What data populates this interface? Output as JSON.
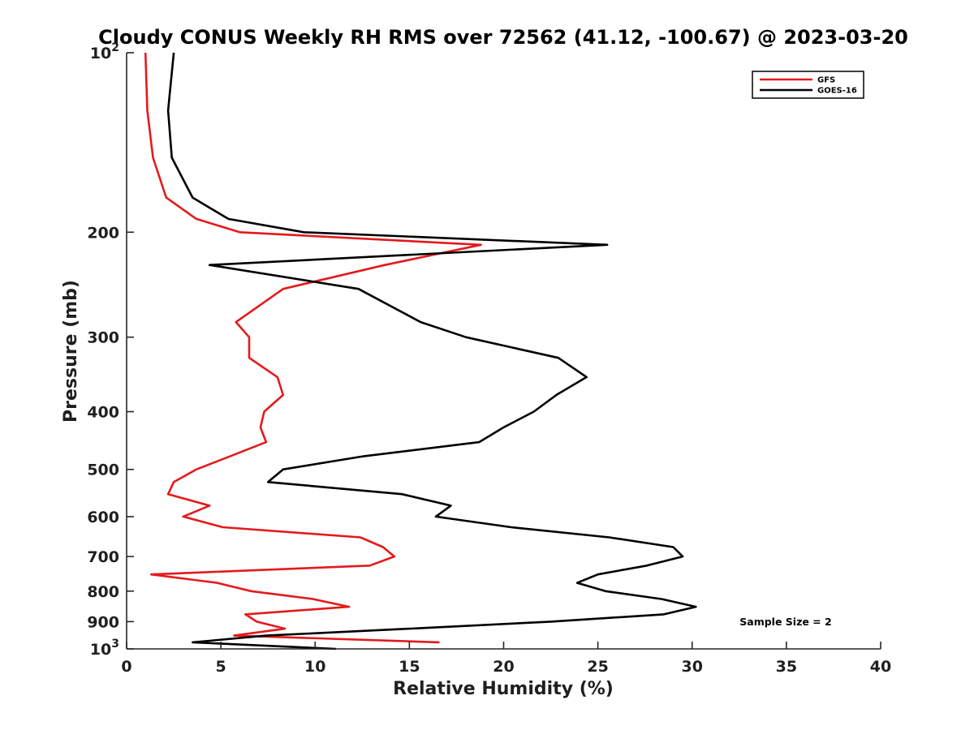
{
  "chart_data": {
    "type": "line",
    "title": "Cloudy CONUS Weekly RH RMS over 72562 (41.12, -100.67) @ 2023-03-20",
    "xlabel": "Relative Humidity (%)",
    "ylabel": "Pressure (mb)",
    "xlim": [
      0,
      40
    ],
    "ylim": [
      100,
      1000
    ],
    "y_scale": "log",
    "y_inverted": true,
    "x_ticks": [
      "0",
      "5",
      "10",
      "15",
      "20",
      "25",
      "30",
      "35",
      "40"
    ],
    "y_ticks": [
      {
        "value": 100,
        "base": "10",
        "exp": "2"
      },
      {
        "value": 200,
        "label": "200"
      },
      {
        "value": 300,
        "label": "300"
      },
      {
        "value": 400,
        "label": "400"
      },
      {
        "value": 500,
        "label": "500"
      },
      {
        "value": 600,
        "label": "600"
      },
      {
        "value": 700,
        "label": "700"
      },
      {
        "value": 800,
        "label": "800"
      },
      {
        "value": 900,
        "label": "900"
      },
      {
        "value": 1000,
        "base": "10",
        "exp": "3"
      }
    ],
    "grid": false,
    "legend_position": "top-right",
    "series": [
      {
        "name": "GFS",
        "color": "#e41a1c",
        "points": [
          {
            "x": 1.0,
            "y": 100
          },
          {
            "x": 1.1,
            "y": 125
          },
          {
            "x": 1.4,
            "y": 150
          },
          {
            "x": 2.1,
            "y": 175
          },
          {
            "x": 3.7,
            "y": 190
          },
          {
            "x": 6.0,
            "y": 200
          },
          {
            "x": 18.8,
            "y": 210
          },
          {
            "x": 13.7,
            "y": 227
          },
          {
            "x": 8.3,
            "y": 249
          },
          {
            "x": 5.8,
            "y": 283
          },
          {
            "x": 6.5,
            "y": 300
          },
          {
            "x": 6.5,
            "y": 325
          },
          {
            "x": 8.0,
            "y": 350
          },
          {
            "x": 8.3,
            "y": 375
          },
          {
            "x": 7.3,
            "y": 400
          },
          {
            "x": 7.1,
            "y": 425
          },
          {
            "x": 7.4,
            "y": 450
          },
          {
            "x": 5.5,
            "y": 475
          },
          {
            "x": 3.7,
            "y": 500
          },
          {
            "x": 2.5,
            "y": 525
          },
          {
            "x": 2.2,
            "y": 550
          },
          {
            "x": 4.4,
            "y": 575
          },
          {
            "x": 3.0,
            "y": 600
          },
          {
            "x": 5.1,
            "y": 625
          },
          {
            "x": 12.4,
            "y": 650
          },
          {
            "x": 13.6,
            "y": 675
          },
          {
            "x": 14.2,
            "y": 700
          },
          {
            "x": 12.9,
            "y": 725
          },
          {
            "x": 1.3,
            "y": 750
          },
          {
            "x": 4.8,
            "y": 775
          },
          {
            "x": 6.6,
            "y": 800
          },
          {
            "x": 9.9,
            "y": 825
          },
          {
            "x": 11.8,
            "y": 850
          },
          {
            "x": 6.3,
            "y": 875
          },
          {
            "x": 6.9,
            "y": 900
          },
          {
            "x": 8.4,
            "y": 925
          },
          {
            "x": 5.7,
            "y": 950
          },
          {
            "x": 16.6,
            "y": 975
          }
        ]
      },
      {
        "name": "GOES-16",
        "color": "#000000",
        "points": [
          {
            "x": 2.5,
            "y": 100
          },
          {
            "x": 2.2,
            "y": 125
          },
          {
            "x": 2.4,
            "y": 150
          },
          {
            "x": 3.5,
            "y": 175
          },
          {
            "x": 5.4,
            "y": 190
          },
          {
            "x": 9.4,
            "y": 200
          },
          {
            "x": 25.5,
            "y": 210
          },
          {
            "x": 4.4,
            "y": 227
          },
          {
            "x": 12.3,
            "y": 249
          },
          {
            "x": 15.6,
            "y": 283
          },
          {
            "x": 18.0,
            "y": 300
          },
          {
            "x": 22.9,
            "y": 325
          },
          {
            "x": 24.4,
            "y": 350
          },
          {
            "x": 22.8,
            "y": 375
          },
          {
            "x": 21.6,
            "y": 400
          },
          {
            "x": 20.0,
            "y": 425
          },
          {
            "x": 18.7,
            "y": 450
          },
          {
            "x": 12.6,
            "y": 475
          },
          {
            "x": 8.3,
            "y": 500
          },
          {
            "x": 7.5,
            "y": 525
          },
          {
            "x": 14.6,
            "y": 550
          },
          {
            "x": 17.2,
            "y": 575
          },
          {
            "x": 16.4,
            "y": 600
          },
          {
            "x": 20.4,
            "y": 625
          },
          {
            "x": 25.6,
            "y": 650
          },
          {
            "x": 29.0,
            "y": 675
          },
          {
            "x": 29.5,
            "y": 700
          },
          {
            "x": 27.6,
            "y": 725
          },
          {
            "x": 25.0,
            "y": 750
          },
          {
            "x": 23.9,
            "y": 775
          },
          {
            "x": 25.4,
            "y": 800
          },
          {
            "x": 28.4,
            "y": 825
          },
          {
            "x": 30.2,
            "y": 850
          },
          {
            "x": 28.5,
            "y": 875
          },
          {
            "x": 22.5,
            "y": 900
          },
          {
            "x": 15.0,
            "y": 925
          },
          {
            "x": 7.4,
            "y": 950
          },
          {
            "x": 3.5,
            "y": 975
          },
          {
            "x": 11.1,
            "y": 1000
          }
        ]
      }
    ],
    "annotation": "Sample Size = 2"
  }
}
